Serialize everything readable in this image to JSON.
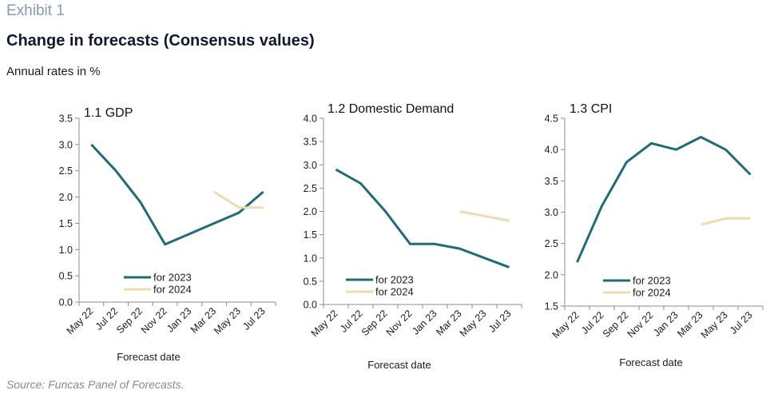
{
  "header": {
    "exhibit": "Exhibit 1",
    "title": "Change in forecasts (Consensus values)",
    "subtitle": "Annual rates in %"
  },
  "source": "Source: Funcas Panel of Forecasts.",
  "colors": {
    "exhibit_label": "#8899b3"
  },
  "chart_data": [
    {
      "type": "line",
      "title": "1.1 GDP",
      "xlabel": "Forecast date",
      "ylabel": "",
      "categories": [
        "May 22",
        "Jul 22",
        "Sep 22",
        "Nov 22",
        "Jan 23",
        "Mar 23",
        "May 23",
        "Jul 23"
      ],
      "ylim": [
        0,
        3.5
      ],
      "yticks": [
        "0.0",
        "0.5",
        "1.0",
        "1.5",
        "2.0",
        "2.5",
        "3.0",
        "3.5"
      ],
      "grid": false,
      "legend": "bottom-center",
      "series": [
        {
          "name": "for 2023",
          "color": "#1f6c78",
          "values": [
            3.0,
            2.5,
            1.9,
            1.1,
            1.3,
            1.5,
            1.7,
            2.1
          ]
        },
        {
          "name": "for 2024",
          "color": "#ecdcb0",
          "values": [
            null,
            null,
            null,
            null,
            null,
            2.1,
            1.8,
            1.8
          ]
        }
      ]
    },
    {
      "type": "line",
      "title": "1.2 Domestic Demand",
      "xlabel": "Forecast date",
      "ylabel": "",
      "categories": [
        "May 22",
        "Jul 22",
        "Sep 22",
        "Nov 22",
        "Jan 23",
        "Mar 23",
        "May 23",
        "Jul 23"
      ],
      "ylim": [
        0,
        4.0
      ],
      "yticks": [
        "0.0",
        "0.5",
        "1.0",
        "1.5",
        "2.0",
        "2.5",
        "3.0",
        "3.5",
        "4.0"
      ],
      "grid": false,
      "legend": "bottom-left",
      "series": [
        {
          "name": "for 2023",
          "color": "#1f6c78",
          "values": [
            2.9,
            2.6,
            2.0,
            1.3,
            1.3,
            1.2,
            1.0,
            0.8
          ]
        },
        {
          "name": "for 2024",
          "color": "#ecdcb0",
          "values": [
            null,
            null,
            null,
            null,
            null,
            2.0,
            1.9,
            1.8
          ]
        }
      ]
    },
    {
      "type": "line",
      "title": "1.3 CPI",
      "xlabel": "Forecast date",
      "ylabel": "",
      "categories": [
        "May 22",
        "Jul 22",
        "Sep 22",
        "Nov 22",
        "Jan 23",
        "Mar 23",
        "May 23",
        "Jul 23"
      ],
      "ylim": [
        1.5,
        4.5
      ],
      "yticks": [
        "1.5",
        "2.0",
        "2.5",
        "3.0",
        "3.5",
        "4.0",
        "4.5"
      ],
      "grid": false,
      "legend": "bottom-left",
      "series": [
        {
          "name": "for 2023",
          "color": "#1f6c78",
          "values": [
            2.2,
            3.1,
            3.8,
            4.1,
            4.0,
            4.2,
            4.0,
            3.6
          ]
        },
        {
          "name": "for 2024",
          "color": "#ecdcb0",
          "values": [
            null,
            null,
            null,
            null,
            null,
            2.8,
            2.9,
            2.9
          ]
        }
      ]
    }
  ]
}
